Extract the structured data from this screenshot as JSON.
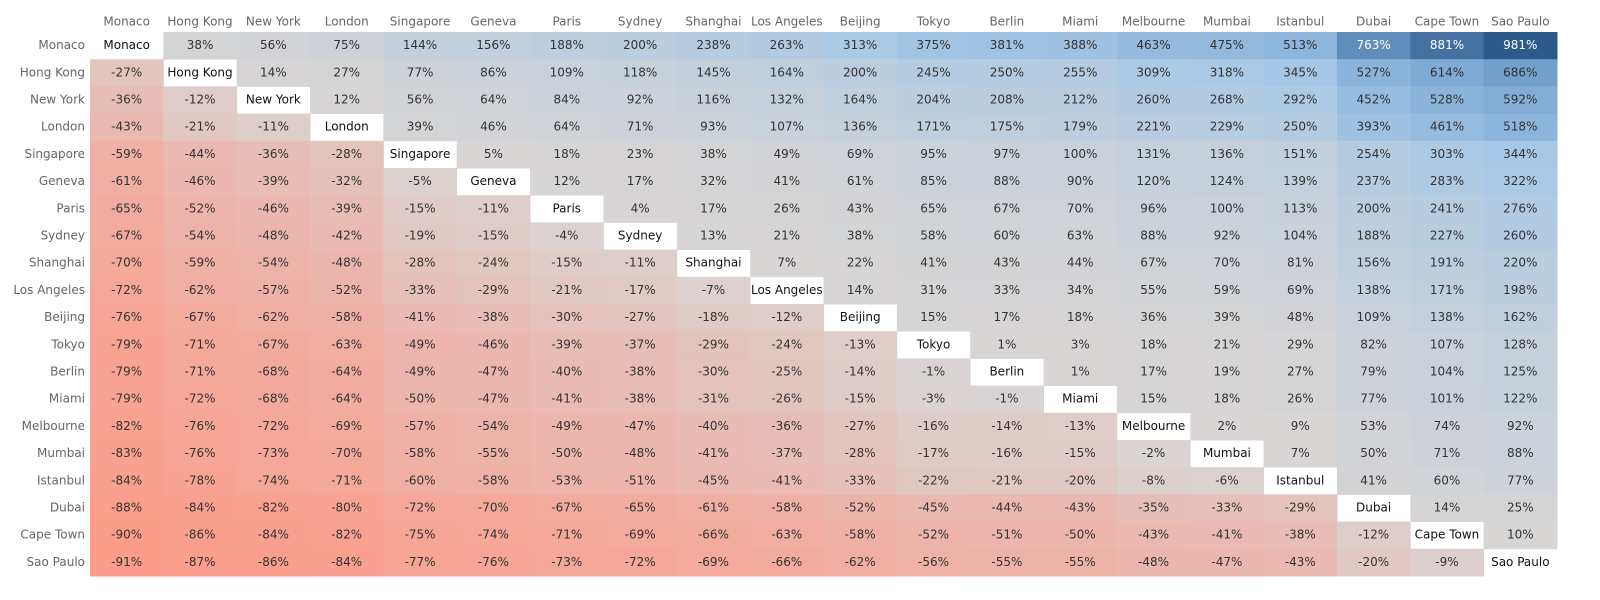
{
  "chart_data": {
    "type": "heatmap",
    "columns": [
      "Monaco",
      "Hong Kong",
      "New York",
      "London",
      "Singapore",
      "Geneva",
      "Paris",
      "Sydney",
      "Shanghai",
      "Los Angeles",
      "Beijing",
      "Tokyo",
      "Berlin",
      "Miami",
      "Melbourne",
      "Mumbai",
      "Istanbul",
      "Dubai",
      "Cape Town",
      "Sao Paulo"
    ],
    "rows": [
      "Monaco",
      "Hong Kong",
      "New York",
      "London",
      "Singapore",
      "Geneva",
      "Paris",
      "Sydney",
      "Shanghai",
      "Los Angeles",
      "Beijing",
      "Tokyo",
      "Berlin",
      "Miami",
      "Melbourne",
      "Mumbai",
      "Istanbul",
      "Dubai",
      "Cape Town",
      "Sao Paulo"
    ],
    "values": [
      [
        null,
        38,
        56,
        75,
        144,
        156,
        188,
        200,
        238,
        263,
        313,
        375,
        381,
        388,
        463,
        475,
        513,
        763,
        881,
        981
      ],
      [
        -27,
        null,
        14,
        27,
        77,
        86,
        109,
        118,
        145,
        164,
        200,
        245,
        250,
        255,
        309,
        318,
        345,
        527,
        614,
        686
      ],
      [
        -36,
        -12,
        null,
        12,
        56,
        64,
        84,
        92,
        116,
        132,
        164,
        204,
        208,
        212,
        260,
        268,
        292,
        452,
        528,
        592
      ],
      [
        -43,
        -21,
        -11,
        null,
        39,
        46,
        64,
        71,
        93,
        107,
        136,
        171,
        175,
        179,
        221,
        229,
        250,
        393,
        461,
        518
      ],
      [
        -59,
        -44,
        -36,
        -28,
        null,
        5,
        18,
        23,
        38,
        49,
        69,
        95,
        97,
        100,
        131,
        136,
        151,
        254,
        303,
        344
      ],
      [
        -61,
        -46,
        -39,
        -32,
        -5,
        null,
        12,
        17,
        32,
        41,
        61,
        85,
        88,
        90,
        120,
        124,
        139,
        237,
        283,
        322
      ],
      [
        -65,
        -52,
        -46,
        -39,
        -15,
        -11,
        null,
        4,
        17,
        26,
        43,
        65,
        67,
        70,
        96,
        100,
        113,
        200,
        241,
        276
      ],
      [
        -67,
        -54,
        -48,
        -42,
        -19,
        -15,
        -4,
        null,
        13,
        21,
        38,
        58,
        60,
        63,
        88,
        92,
        104,
        188,
        227,
        260
      ],
      [
        -70,
        -59,
        -54,
        -48,
        -28,
        -24,
        -15,
        -11,
        null,
        7,
        22,
        41,
        43,
        44,
        67,
        70,
        81,
        156,
        191,
        220
      ],
      [
        -72,
        -62,
        -57,
        -52,
        -33,
        -29,
        -21,
        -17,
        -7,
        null,
        14,
        31,
        33,
        34,
        55,
        59,
        69,
        138,
        171,
        198
      ],
      [
        -76,
        -67,
        -62,
        -58,
        -41,
        -38,
        -30,
        -27,
        -18,
        -12,
        null,
        15,
        17,
        18,
        36,
        39,
        48,
        109,
        138,
        162
      ],
      [
        -79,
        -71,
        -67,
        -63,
        -49,
        -46,
        -39,
        -37,
        -29,
        -24,
        -13,
        null,
        1,
        3,
        18,
        21,
        29,
        82,
        107,
        128
      ],
      [
        -79,
        -71,
        -68,
        -64,
        -49,
        -47,
        -40,
        -38,
        -30,
        -25,
        -14,
        -1,
        null,
        1,
        17,
        19,
        27,
        79,
        104,
        125
      ],
      [
        -79,
        -72,
        -68,
        -64,
        -50,
        -47,
        -41,
        -38,
        -31,
        -26,
        -15,
        -3,
        -1,
        null,
        15,
        18,
        26,
        77,
        101,
        122
      ],
      [
        -82,
        -76,
        -72,
        -69,
        -57,
        -54,
        -49,
        -47,
        -40,
        -36,
        -27,
        -16,
        -14,
        -13,
        null,
        2,
        9,
        53,
        74,
        92
      ],
      [
        -83,
        -76,
        -73,
        -70,
        -58,
        -55,
        -50,
        -48,
        -41,
        -37,
        -28,
        -17,
        -16,
        -15,
        -2,
        null,
        7,
        50,
        71,
        88
      ],
      [
        -84,
        -78,
        -74,
        -71,
        -60,
        -58,
        -53,
        -51,
        -45,
        -41,
        -33,
        -22,
        -21,
        -20,
        -8,
        -6,
        null,
        41,
        60,
        77
      ],
      [
        -88,
        -84,
        -82,
        -80,
        -72,
        -70,
        -67,
        -65,
        -61,
        -58,
        -52,
        -45,
        -44,
        -43,
        -35,
        -33,
        -29,
        null,
        14,
        25
      ],
      [
        -90,
        -86,
        -84,
        -82,
        -75,
        -74,
        -71,
        -69,
        -66,
        -63,
        -58,
        -52,
        -51,
        -50,
        -43,
        -41,
        -38,
        -12,
        null,
        10
      ],
      [
        -91,
        -87,
        -86,
        -84,
        -77,
        -76,
        -73,
        -72,
        -69,
        -66,
        -62,
        -56,
        -55,
        -55,
        -48,
        -47,
        -43,
        -20,
        -9,
        null
      ]
    ],
    "value_labels": [
      [
        null,
        "38%",
        "56%",
        "75%",
        "144%",
        "156%",
        "188%",
        "200%",
        "238%",
        "263%",
        "313%",
        "375%",
        "381%",
        "388%",
        "463%",
        "475%",
        "513%",
        "763%",
        "881%",
        "981%"
      ],
      [
        "-27%",
        null,
        "14%",
        "27%",
        "77%",
        "86%",
        "109%",
        "118%",
        "145%",
        "164%",
        "200%",
        "245%",
        "250%",
        "255%",
        "309%",
        "318%",
        "345%",
        "527%",
        "614%",
        "686%"
      ],
      [
        "-36%",
        "-12%",
        null,
        "12%",
        "56%",
        "64%",
        "84%",
        "92%",
        "116%",
        "132%",
        "164%",
        "204%",
        "208%",
        "212%",
        "260%",
        "268%",
        "292%",
        "452%",
        "528%",
        "592%"
      ],
      [
        "-43%",
        "-21%",
        "-11%",
        null,
        "39%",
        "46%",
        "64%",
        "71%",
        "93%",
        "107%",
        "136%",
        "171%",
        "175%",
        "179%",
        "221%",
        "229%",
        "250%",
        "393%",
        "461%",
        "518%"
      ],
      [
        "-59%",
        "-44%",
        "-36%",
        "-28%",
        null,
        "5%",
        "18%",
        "23%",
        "38%",
        "49%",
        "69%",
        "95%",
        "97%",
        "100%",
        "131%",
        "136%",
        "151%",
        "254%",
        "303%",
        "344%"
      ],
      [
        "-61%",
        "-46%",
        "-39%",
        "-32%",
        "-5%",
        null,
        "12%",
        "17%",
        "32%",
        "41%",
        "61%",
        "85%",
        "88%",
        "90%",
        "120%",
        "124%",
        "139%",
        "237%",
        "283%",
        "322%"
      ],
      [
        "-65%",
        "-52%",
        "-46%",
        "-39%",
        "-15%",
        "-11%",
        null,
        "4%",
        "17%",
        "26%",
        "43%",
        "65%",
        "67%",
        "70%",
        "96%",
        "100%",
        "113%",
        "200%",
        "241%",
        "276%"
      ],
      [
        "-67%",
        "-54%",
        "-48%",
        "-42%",
        "-19%",
        "-15%",
        "-4%",
        null,
        "13%",
        "21%",
        "38%",
        "58%",
        "60%",
        "63%",
        "88%",
        "92%",
        "104%",
        "188%",
        "227%",
        "260%"
      ],
      [
        "-70%",
        "-59%",
        "-54%",
        "-48%",
        "-28%",
        "-24%",
        "-15%",
        "-11%",
        null,
        "7%",
        "22%",
        "41%",
        "43%",
        "44%",
        "67%",
        "70%",
        "81%",
        "156%",
        "191%",
        "220%"
      ],
      [
        "-72%",
        "-62%",
        "-57%",
        "-52%",
        "-33%",
        "-29%",
        "-21%",
        "-17%",
        "-7%",
        null,
        "14%",
        "31%",
        "33%",
        "34%",
        "55%",
        "59%",
        "69%",
        "138%",
        "171%",
        "198%"
      ],
      [
        "-76%",
        "-67%",
        "-62%",
        "-58%",
        "-41%",
        "-38%",
        "-30%",
        "-27%",
        "-18%",
        "-12%",
        null,
        "15%",
        "17%",
        "18%",
        "36%",
        "39%",
        "48%",
        "109%",
        "138%",
        "162%"
      ],
      [
        "-79%",
        "-71%",
        "-67%",
        "-63%",
        "-49%",
        "-46%",
        "-39%",
        "-37%",
        "-29%",
        "-24%",
        "-13%",
        null,
        "1%",
        "3%",
        "18%",
        "21%",
        "29%",
        "82%",
        "107%",
        "128%"
      ],
      [
        "-79%",
        "-71%",
        "-68%",
        "-64%",
        "-49%",
        "-47%",
        "-40%",
        "-38%",
        "-30%",
        "-25%",
        "-14%",
        "-1%",
        null,
        "1%",
        "17%",
        "19%",
        "27%",
        "79%",
        "104%",
        "125%"
      ],
      [
        "-79%",
        "-72%",
        "-68%",
        "-64%",
        "-50%",
        "-47%",
        "-41%",
        "-38%",
        "-31%",
        "-26%",
        "-15%",
        "-3%",
        "-1%",
        null,
        "15%",
        "18%",
        "26%",
        "77%",
        "101%",
        "122%"
      ],
      [
        "-82%",
        "-76%",
        "-72%",
        "-69%",
        "-57%",
        "-54%",
        "-49%",
        "-47%",
        "-40%",
        "-36%",
        "-27%",
        "-16%",
        "-14%",
        "-13%",
        null,
        "2%",
        "9%",
        "53%",
        "74%",
        "92%"
      ],
      [
        "-83%",
        "-76%",
        "-73%",
        "-70%",
        "-58%",
        "-55%",
        "-50%",
        "-48%",
        "-41%",
        "-37%",
        "-28%",
        "-17%",
        "-16%",
        "-15%",
        "-2%",
        null,
        "7%",
        "50%",
        "71%",
        "88%"
      ],
      [
        "-84%",
        "-78%",
        "-74%",
        "-71%",
        "-60%",
        "-58%",
        "-53%",
        "-51%",
        "-45%",
        "-41%",
        "-33%",
        "-22%",
        "-21%",
        "-20%",
        "-8%",
        "-6%",
        null,
        "41%",
        "60%",
        "77%"
      ],
      [
        "-88%",
        "-84%",
        "-82%",
        "-80%",
        "-72%",
        "-70%",
        "-67%",
        "-65%",
        "-61%",
        "-58%",
        "-52%",
        "-45%",
        "-44%",
        "-43%",
        "-35%",
        "-33%",
        "-29%",
        null,
        "14%",
        "25%"
      ],
      [
        "-90%",
        "-86%",
        "-84%",
        "-82%",
        "-75%",
        "-74%",
        "-71%",
        "-69%",
        "-66%",
        "-63%",
        "-58%",
        "-52%",
        "-51%",
        "-50%",
        "-43%",
        "-41%",
        "-38%",
        "-12%",
        null,
        "10%"
      ],
      [
        "-91%",
        "-87%",
        "-86%",
        "-84%",
        "-77%",
        "-76%",
        "-73%",
        "-72%",
        "-69%",
        "-66%",
        "-62%",
        "-56%",
        "-55%",
        "-55%",
        "-48%",
        "-47%",
        "-43%",
        "-20%",
        "-9%",
        null
      ]
    ],
    "colors": {
      "negative": "#fc9c8a",
      "neutral": "#d9d5d4",
      "positive": [
        "#a8c9e6",
        "#7aa6d3",
        "#2c5a8b"
      ],
      "diagonal": "#ffffff"
    }
  }
}
